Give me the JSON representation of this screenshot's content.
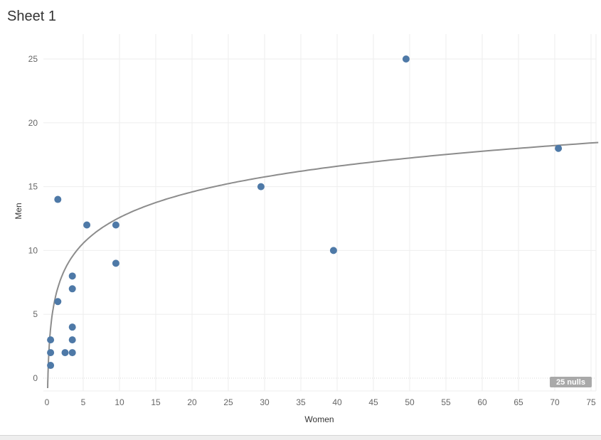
{
  "sheet": {
    "title": "Sheet 1"
  },
  "null_indicator": "25 nulls",
  "colors": {
    "point": "#4e79a7",
    "trend": "#8c8c8c",
    "grid": "#eeeeee"
  },
  "chart_data": {
    "type": "scatter",
    "xlabel": "Women",
    "ylabel": "Men",
    "xlim": [
      0,
      76
    ],
    "ylim": [
      0,
      26
    ],
    "xticks": [
      0,
      5,
      10,
      15,
      20,
      25,
      30,
      35,
      40,
      45,
      50,
      55,
      60,
      65,
      70,
      75
    ],
    "yticks": [
      0,
      5,
      10,
      15,
      20,
      25
    ],
    "grid": true,
    "trend_line": {
      "type": "logarithmic"
    },
    "points": [
      {
        "x": 0.5,
        "y": 1
      },
      {
        "x": 0.5,
        "y": 2
      },
      {
        "x": 0.5,
        "y": 3
      },
      {
        "x": 1.5,
        "y": 6
      },
      {
        "x": 1.5,
        "y": 14
      },
      {
        "x": 2.5,
        "y": 2
      },
      {
        "x": 3.5,
        "y": 2
      },
      {
        "x": 3.5,
        "y": 3
      },
      {
        "x": 3.5,
        "y": 4
      },
      {
        "x": 3.5,
        "y": 7
      },
      {
        "x": 3.5,
        "y": 8
      },
      {
        "x": 5.5,
        "y": 12
      },
      {
        "x": 9.5,
        "y": 9
      },
      {
        "x": 9.5,
        "y": 12
      },
      {
        "x": 29.5,
        "y": 15
      },
      {
        "x": 39.5,
        "y": 10
      },
      {
        "x": 49.5,
        "y": 25
      },
      {
        "x": 70.5,
        "y": 18
      }
    ]
  }
}
